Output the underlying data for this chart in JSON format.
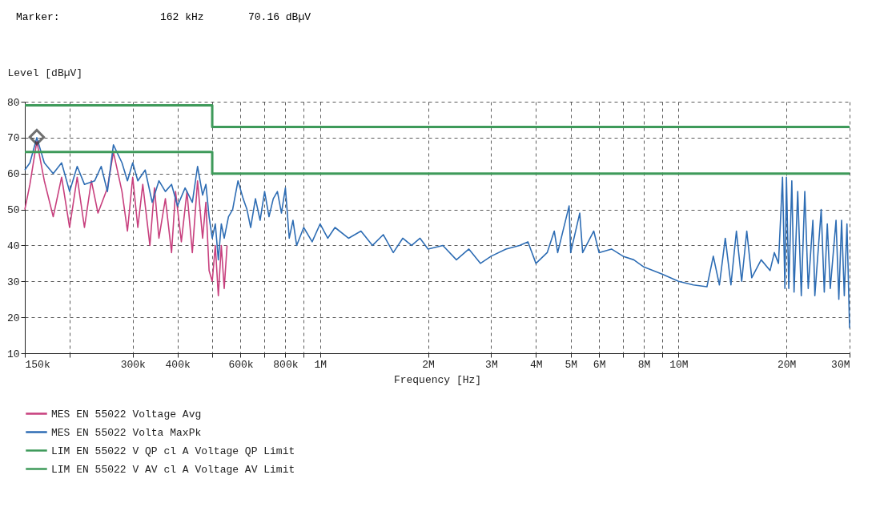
{
  "chart_data": {
    "type": "line",
    "annotations": [
      "Marker:",
      "162 kHz",
      "70.16 dBµV"
    ],
    "xlabel": "Frequency [Hz]",
    "ylabel": "Level [dBµV]",
    "log": "x",
    "grid": true,
    "legend": "bottom",
    "xlim": [
      150000,
      30000000
    ],
    "ylim": [
      10,
      80
    ],
    "xticks": [
      {
        "value": 150000,
        "label": "150k"
      },
      {
        "value": 200000,
        "label": null
      },
      {
        "value": 300000,
        "label": "300k"
      },
      {
        "value": 400000,
        "label": "400k"
      },
      {
        "value": 500000,
        "label": null
      },
      {
        "value": 600000,
        "label": "600k"
      },
      {
        "value": 700000,
        "label": null
      },
      {
        "value": 800000,
        "label": "800k"
      },
      {
        "value": 900000,
        "label": null
      },
      {
        "value": 1000000,
        "label": "1M"
      },
      {
        "value": 2000000,
        "label": "2M"
      },
      {
        "value": 3000000,
        "label": "3M"
      },
      {
        "value": 4000000,
        "label": "4M"
      },
      {
        "value": 5000000,
        "label": "5M"
      },
      {
        "value": 6000000,
        "label": "6M"
      },
      {
        "value": 7000000,
        "label": null
      },
      {
        "value": 8000000,
        "label": "8M"
      },
      {
        "value": 9000000,
        "label": null
      },
      {
        "value": 10000000,
        "label": "10M"
      },
      {
        "value": 20000000,
        "label": "20M"
      },
      {
        "value": 30000000,
        "label": "30M"
      }
    ],
    "yticks": [
      10,
      20,
      30,
      40,
      50,
      60,
      70,
      80
    ],
    "series": [
      {
        "name": "MES    EN 55022 Voltage Avg",
        "color": "#c8407e",
        "x": [
          150000,
          155000,
          162000,
          170000,
          180000,
          190000,
          200000,
          210000,
          220000,
          230000,
          240000,
          255000,
          265000,
          280000,
          290000,
          300000,
          310000,
          320000,
          335000,
          345000,
          355000,
          370000,
          385000,
          395000,
          410000,
          425000,
          440000,
          455000,
          470000,
          480000,
          490000,
          500000,
          510000,
          520000,
          530000,
          540000,
          550000
        ],
        "values": [
          50,
          57,
          69,
          58,
          48,
          59,
          45,
          59,
          45,
          58,
          49,
          56,
          66,
          55,
          44,
          59,
          45,
          57,
          40,
          56,
          42,
          53,
          38,
          55,
          41,
          55,
          38,
          58,
          42,
          52,
          33,
          30,
          40,
          26,
          40,
          28,
          40
        ]
      },
      {
        "name": "MES    EN 55022 Volta MaxPk",
        "color": "#2e6db4",
        "x": [
          150000,
          155000,
          162000,
          170000,
          180000,
          190000,
          200000,
          210000,
          220000,
          235000,
          245000,
          255000,
          265000,
          280000,
          290000,
          300000,
          310000,
          325000,
          340000,
          355000,
          370000,
          385000,
          400000,
          420000,
          440000,
          455000,
          470000,
          480000,
          490000,
          500000,
          510000,
          520000,
          530000,
          540000,
          555000,
          570000,
          590000,
          610000,
          625000,
          640000,
          660000,
          680000,
          700000,
          720000,
          740000,
          760000,
          780000,
          800000,
          820000,
          840000,
          860000,
          900000,
          950000,
          1000000,
          1050000,
          1100000,
          1200000,
          1300000,
          1400000,
          1500000,
          1600000,
          1700000,
          1800000,
          1900000,
          2000000,
          2200000,
          2400000,
          2600000,
          2800000,
          3000000,
          3300000,
          3600000,
          3800000,
          4000000,
          4300000,
          4500000,
          4600000,
          4950000,
          5000000,
          5300000,
          5400000,
          5800000,
          6000000,
          6500000,
          7000000,
          7500000,
          8000000,
          9000000,
          10000000,
          11000000,
          12000000,
          12500000,
          13000000,
          13500000,
          14000000,
          14500000,
          15000000,
          15500000,
          16000000,
          17000000,
          18000000,
          18500000,
          19000000,
          19500000,
          19800000,
          20000000,
          20300000,
          20700000,
          21000000,
          21500000,
          22000000,
          22500000,
          23000000,
          23700000,
          24000000,
          25000000,
          25500000,
          26000000,
          26500000,
          27500000,
          28000000,
          28500000,
          29000000,
          29500000,
          30000000
        ],
        "values": [
          61,
          63,
          70,
          63,
          60,
          63,
          55,
          62,
          57,
          58,
          62,
          55,
          68,
          63,
          58,
          63,
          58,
          61,
          52,
          58,
          55,
          57,
          51,
          56,
          52,
          62,
          54,
          57,
          48,
          42,
          46,
          36,
          46,
          42,
          48,
          50,
          58,
          53,
          50,
          45,
          53,
          47,
          55,
          48,
          53,
          55,
          49,
          56,
          42,
          47,
          40,
          45,
          41,
          46,
          42,
          45,
          42,
          44,
          40,
          43,
          38,
          42,
          40,
          42,
          39,
          40,
          36,
          39,
          35,
          37,
          39,
          40,
          41,
          35,
          38,
          44,
          38,
          51,
          38,
          49,
          38,
          44,
          38,
          39,
          37,
          36,
          34,
          32,
          30,
          29,
          28.5,
          37,
          29,
          42,
          29,
          44,
          30,
          44,
          31,
          36,
          33,
          38,
          35,
          59,
          28,
          59,
          28,
          58,
          27,
          55,
          26,
          55,
          28,
          47,
          26,
          50,
          27,
          46,
          28,
          47,
          25,
          47,
          26,
          46,
          17
        ]
      },
      {
        "name": "LIM    EN 55022 V QP cl A    Voltage QP Limit",
        "color": "#3e9a5a",
        "x": [
          150000,
          500000,
          500000,
          30000000
        ],
        "values": [
          79,
          79,
          73,
          73
        ]
      },
      {
        "name": "LIM    EN 55022 V AV cl A    Voltage AV Limit",
        "color": "#3e9a5a",
        "x": [
          150000,
          500000,
          500000,
          30000000
        ],
        "values": [
          66,
          66,
          60,
          60
        ]
      },
      {
        "type": "scatter",
        "marker": "diamond",
        "color": "#333333",
        "x": [
          162000
        ],
        "values": [
          70.16
        ]
      }
    ]
  }
}
